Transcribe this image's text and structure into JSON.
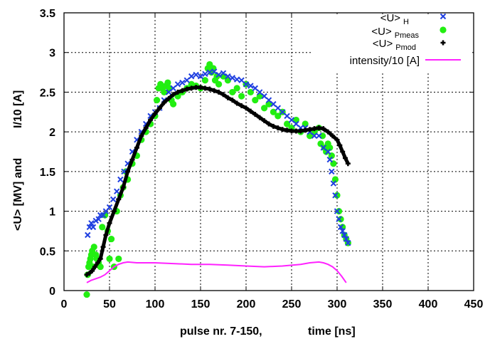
{
  "chart_data": {
    "type": "scatter",
    "xlabel_left": "pulse nr. 7-150,",
    "xlabel_right": "time [ns]",
    "ylabel_left": "<U> [MV]   and",
    "ylabel_right": "I/10 [A]",
    "xlim": [
      0,
      450
    ],
    "ylim": [
      0,
      3.5
    ],
    "xticks": [
      "0",
      "50",
      "100",
      "150",
      "200",
      "250",
      "300",
      "350",
      "400",
      "450"
    ],
    "yticks": [
      "0",
      "0.5",
      "1",
      "1.5",
      "2",
      "2.5",
      "3",
      "3.5"
    ],
    "grid": true,
    "legend_position": "top-right",
    "series": [
      {
        "name": "<U>",
        "subscript": "H",
        "marker": "x",
        "color": "#1f3fe0",
        "x": [
          26,
          28,
          30,
          32,
          35,
          38,
          40,
          43,
          46,
          50,
          54,
          58,
          62,
          66,
          70,
          75,
          80,
          85,
          90,
          95,
          100,
          105,
          110,
          115,
          120,
          125,
          130,
          135,
          140,
          145,
          150,
          155,
          160,
          165,
          170,
          175,
          180,
          185,
          190,
          195,
          200,
          205,
          210,
          215,
          220,
          225,
          230,
          235,
          240,
          245,
          250,
          255,
          260,
          265,
          270,
          275,
          280,
          285,
          290,
          292,
          294,
          296,
          298,
          300,
          302,
          304,
          306,
          308,
          310,
          312
        ],
        "y": [
          0.7,
          0.8,
          0.85,
          0.8,
          0.88,
          0.9,
          0.95,
          0.95,
          1.0,
          1.05,
          1.15,
          1.25,
          1.4,
          1.5,
          1.6,
          1.75,
          1.9,
          2.0,
          2.1,
          2.2,
          2.25,
          2.3,
          2.4,
          2.5,
          2.55,
          2.6,
          2.62,
          2.65,
          2.7,
          2.72,
          2.7,
          2.73,
          2.75,
          2.76,
          2.72,
          2.74,
          2.7,
          2.68,
          2.66,
          2.65,
          2.6,
          2.58,
          2.55,
          2.5,
          2.45,
          2.4,
          2.35,
          2.3,
          2.25,
          2.2,
          2.15,
          2.1,
          2.05,
          2.05,
          2.0,
          1.95,
          1.95,
          1.8,
          1.75,
          1.65,
          1.5,
          1.35,
          1.2,
          1.0,
          0.9,
          0.8,
          0.75,
          0.7,
          0.65,
          0.6
        ]
      },
      {
        "name": "<U>",
        "subscript": "Pmeas",
        "marker": "circle",
        "color": "#22ee11",
        "x": [
          25,
          26,
          27,
          28,
          29,
          30,
          31,
          32,
          33,
          35,
          36,
          38,
          40,
          42,
          45,
          48,
          50,
          52,
          55,
          58,
          60,
          62,
          65,
          68,
          70,
          75,
          80,
          85,
          90,
          95,
          100,
          102,
          104,
          106,
          108,
          110,
          112,
          114,
          116,
          118,
          120,
          125,
          130,
          135,
          140,
          145,
          150,
          155,
          158,
          160,
          162,
          164,
          166,
          168,
          170,
          175,
          180,
          185,
          190,
          195,
          200,
          205,
          210,
          215,
          220,
          225,
          230,
          235,
          240,
          245,
          250,
          255,
          260,
          265,
          270,
          275,
          280,
          282,
          284,
          286,
          288,
          290,
          292,
          294,
          296,
          298,
          300,
          302,
          304,
          306,
          308,
          310,
          312
        ],
        "y": [
          -0.05,
          0.2,
          0.3,
          0.35,
          0.4,
          0.45,
          0.5,
          0.3,
          0.55,
          0.45,
          0.4,
          0.35,
          0.3,
          0.8,
          0.95,
          0.75,
          0.4,
          0.65,
          0.3,
          1.0,
          0.4,
          1.2,
          1.3,
          1.5,
          1.4,
          1.6,
          1.7,
          1.9,
          2.0,
          2.1,
          2.2,
          2.4,
          2.55,
          2.6,
          2.55,
          2.5,
          2.58,
          2.62,
          2.55,
          2.4,
          2.35,
          2.45,
          2.5,
          2.55,
          2.6,
          2.58,
          2.55,
          2.65,
          2.8,
          2.85,
          2.75,
          2.8,
          2.65,
          2.7,
          2.6,
          2.7,
          2.65,
          2.5,
          2.55,
          2.45,
          2.6,
          2.5,
          2.4,
          2.45,
          2.3,
          2.35,
          2.25,
          2.2,
          2.25,
          2.1,
          2.05,
          2.15,
          2.0,
          2.1,
          1.95,
          2.0,
          2.05,
          1.85,
          1.95,
          1.8,
          1.75,
          1.85,
          1.8,
          1.7,
          1.6,
          1.4,
          1.2,
          1.0,
          0.9,
          0.8,
          0.7,
          0.65,
          0.6
        ]
      },
      {
        "name": "<U>",
        "subscript": "Pmod",
        "marker": "plus",
        "color": "#000000",
        "x": [
          25,
          28,
          31,
          34,
          37,
          40,
          43,
          46,
          50,
          55,
          60,
          65,
          70,
          75,
          80,
          85,
          90,
          95,
          100,
          105,
          110,
          115,
          120,
          125,
          130,
          135,
          140,
          145,
          150,
          155,
          160,
          165,
          170,
          175,
          180,
          185,
          190,
          195,
          200,
          205,
          210,
          215,
          220,
          225,
          230,
          235,
          240,
          245,
          250,
          255,
          260,
          265,
          270,
          275,
          280,
          285,
          290,
          295,
          300,
          303,
          306,
          309,
          312
        ],
        "y": [
          0.2,
          0.22,
          0.25,
          0.3,
          0.35,
          0.4,
          0.55,
          0.7,
          0.85,
          1.0,
          1.15,
          1.3,
          1.5,
          1.65,
          1.8,
          1.95,
          2.05,
          2.15,
          2.23,
          2.3,
          2.37,
          2.42,
          2.47,
          2.5,
          2.52,
          2.54,
          2.55,
          2.56,
          2.56,
          2.55,
          2.54,
          2.52,
          2.5,
          2.47,
          2.43,
          2.4,
          2.36,
          2.33,
          2.3,
          2.26,
          2.22,
          2.18,
          2.14,
          2.1,
          2.07,
          2.05,
          2.03,
          2.02,
          2.01,
          2.01,
          2.01,
          2.02,
          2.03,
          2.04,
          2.05,
          2.04,
          2.0,
          1.95,
          1.9,
          1.83,
          1.75,
          1.67,
          1.6
        ]
      },
      {
        "name": "intensity/10 [A]",
        "marker": "line",
        "color": "#ff22ff",
        "x": [
          25,
          30,
          35,
          40,
          45,
          50,
          55,
          60,
          65,
          70,
          80,
          90,
          100,
          120,
          140,
          160,
          180,
          200,
          220,
          240,
          260,
          270,
          280,
          285,
          290,
          295,
          300,
          305,
          310
        ],
        "y": [
          0.1,
          0.13,
          0.15,
          0.17,
          0.2,
          0.25,
          0.3,
          0.33,
          0.35,
          0.36,
          0.35,
          0.35,
          0.35,
          0.34,
          0.33,
          0.33,
          0.32,
          0.31,
          0.3,
          0.31,
          0.33,
          0.35,
          0.36,
          0.35,
          0.33,
          0.3,
          0.25,
          0.18,
          0.1
        ]
      }
    ]
  }
}
